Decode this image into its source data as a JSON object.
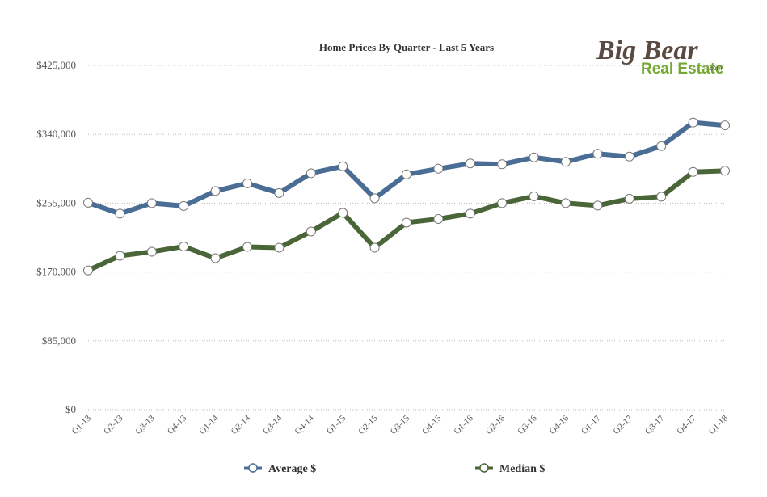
{
  "chart_data": {
    "type": "line",
    "title": "Home Prices By Quarter - Last 5 Years",
    "xlabel": "",
    "ylabel": "",
    "ylim": [
      0,
      425000
    ],
    "yticks": [
      {
        "value": 0,
        "label": "$0"
      },
      {
        "value": 85000,
        "label": "$85,000"
      },
      {
        "value": 170000,
        "label": "$170,000"
      },
      {
        "value": 255000,
        "label": "$255,000"
      },
      {
        "value": 340000,
        "label": "$340,000"
      },
      {
        "value": 425000,
        "label": "$425,000"
      }
    ],
    "grid": "horizontal-dotted",
    "legend_position": "bottom",
    "categories": [
      "Q1-13",
      "Q2-13",
      "Q3-13",
      "Q4-13",
      "Q1-14",
      "Q2-14",
      "Q3-14",
      "Q4-14",
      "Q1-15",
      "Q2-15",
      "Q3-15",
      "Q4-15",
      "Q1-16",
      "Q2-16",
      "Q3-16",
      "Q4-16",
      "Q1-17",
      "Q2-17",
      "Q3-17",
      "Q4-17",
      "Q1-18"
    ],
    "series": [
      {
        "name": "Average $",
        "color": "#4a6d95",
        "values": [
          255500,
          242000,
          255000,
          251500,
          270000,
          279500,
          267500,
          292000,
          300500,
          261000,
          290500,
          297500,
          304000,
          303000,
          311500,
          306000,
          316000,
          312500,
          325500,
          354500,
          351000
        ]
      },
      {
        "name": "Median $",
        "color": "#4a6638",
        "values": [
          172000,
          190000,
          195000,
          201500,
          187000,
          201000,
          200000,
          220000,
          243000,
          200000,
          231000,
          235500,
          242000,
          255000,
          263500,
          255000,
          252000,
          260500,
          263000,
          293500,
          295000
        ]
      }
    ]
  },
  "logo": {
    "line1": "Big Bear",
    "line2": "Real Estate",
    "suffix": ".com"
  }
}
